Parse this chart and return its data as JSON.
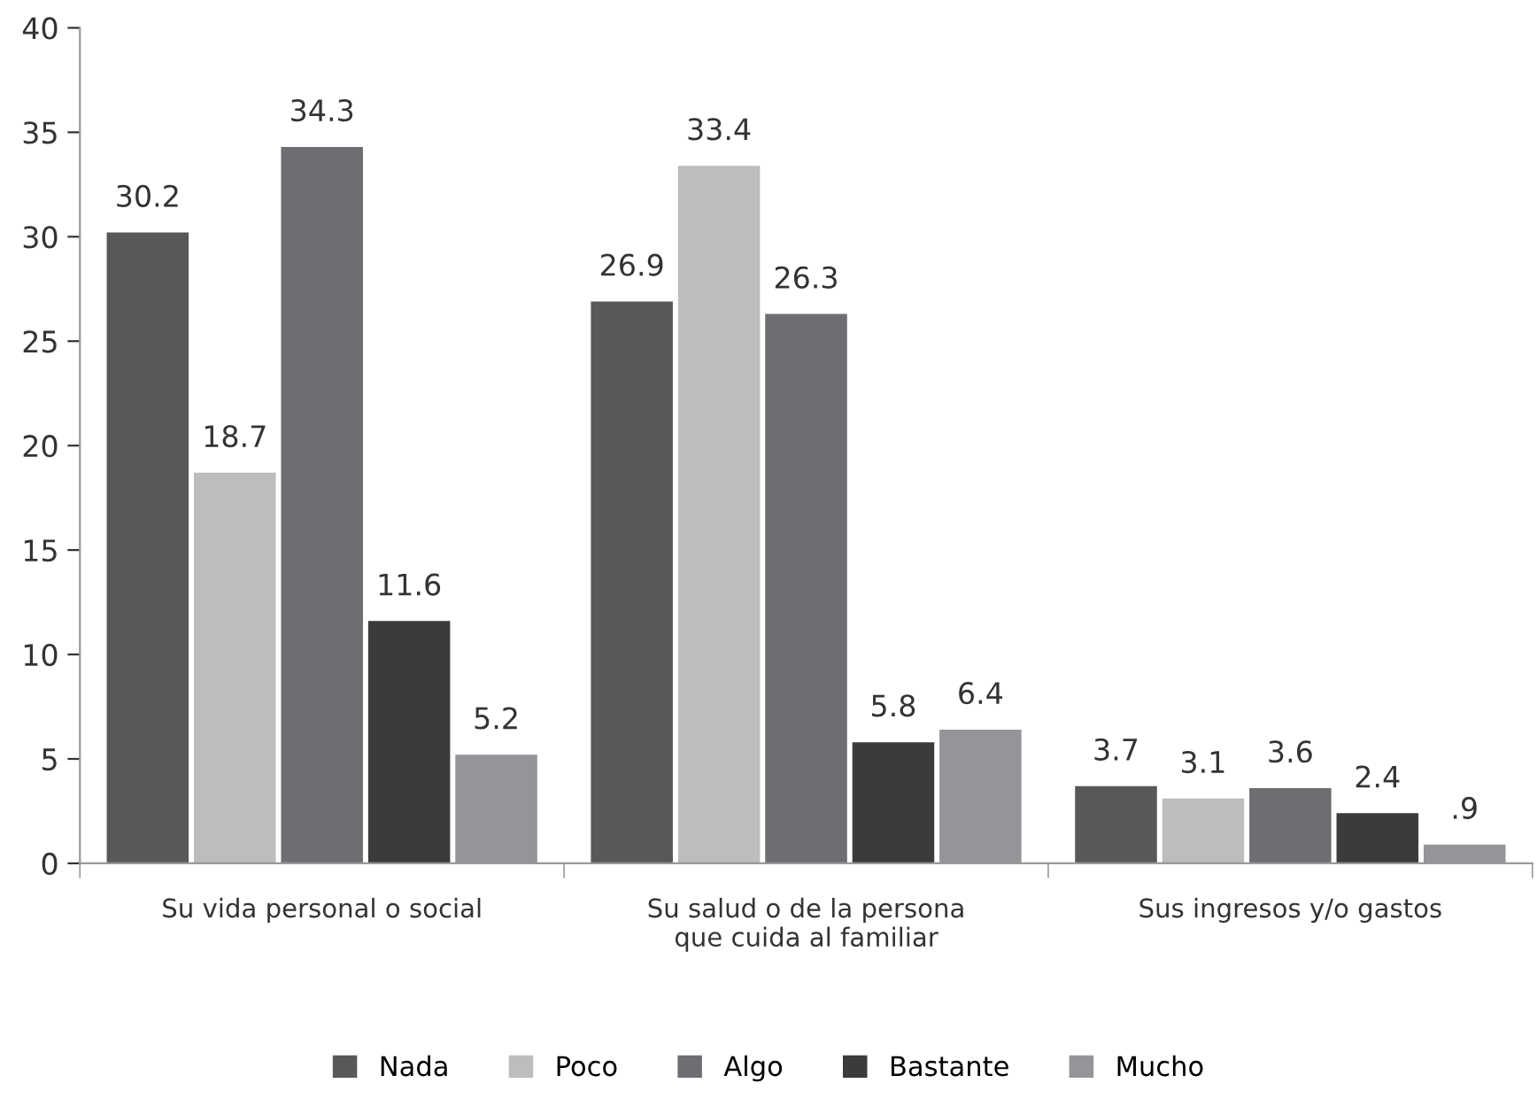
{
  "chart_data": {
    "type": "bar",
    "categories": [
      "Su vida personal o social",
      "Su salud o de la persona\nque cuida al familiar",
      "Sus ingresos y/o gastos"
    ],
    "series": [
      {
        "name": "Nada",
        "color": "#58585a",
        "values": [
          30.2,
          26.9,
          3.7
        ],
        "value_labels": [
          "30.2",
          "26.9",
          "3.7"
        ]
      },
      {
        "name": "Poco",
        "color": "#bdbdbf",
        "values": [
          18.7,
          33.4,
          3.1
        ],
        "value_labels": [
          "18.7",
          "33.4",
          "3.1"
        ]
      },
      {
        "name": "Algo",
        "color": "#6d6e71",
        "values": [
          34.3,
          26.3,
          3.6
        ],
        "value_labels": [
          "34.3",
          "26.3",
          "3.6"
        ]
      },
      {
        "name": "Bastante",
        "color": "#3b3b3d",
        "values": [
          11.6,
          5.8,
          2.4
        ],
        "value_labels": [
          "11.6",
          "5.8",
          "2.4"
        ]
      },
      {
        "name": "Mucho",
        "color": "#939598",
        "values": [
          5.2,
          6.4,
          0.9
        ],
        "value_labels": [
          "5.2",
          "6.4",
          ".9"
        ]
      }
    ],
    "ylim": [
      0,
      40
    ],
    "yticks": [
      0,
      5,
      10,
      15,
      20,
      25,
      30,
      35,
      40
    ],
    "grid": false,
    "legend": "bottom"
  }
}
